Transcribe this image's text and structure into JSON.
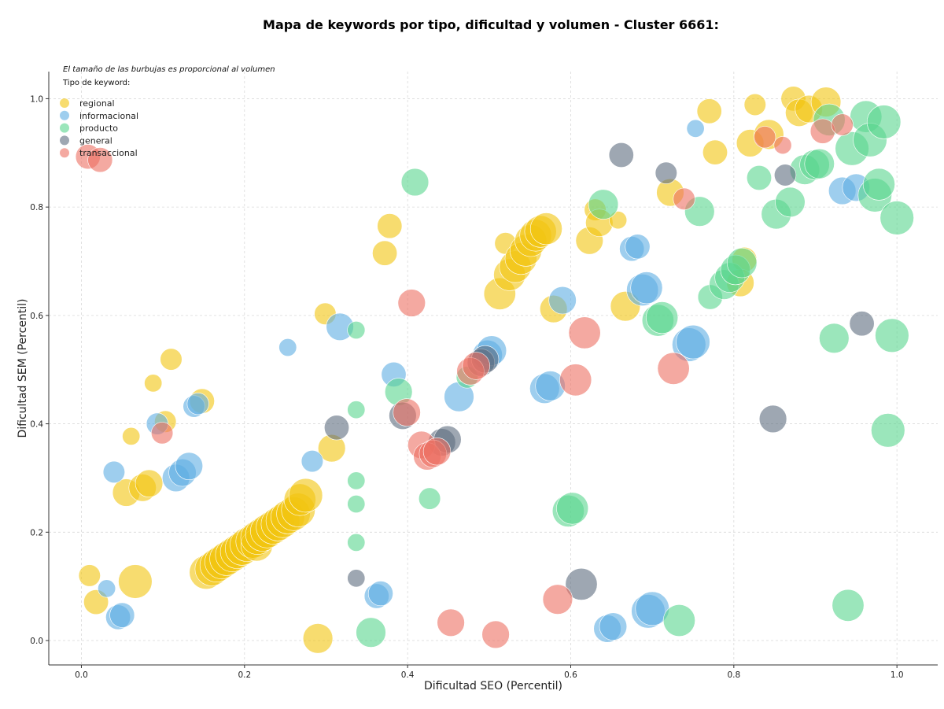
{
  "chart_data": {
    "type": "scatter",
    "title": "Mapa de keywords por tipo, dificultad y volumen - Cluster 6661:",
    "xlabel": "Dificultad SEO (Percentil)",
    "ylabel": "Dificultad SEM (Percentil)",
    "annotation": "El tamaño de las burbujas es proporcional al volumen",
    "legend_title": "Tipo de keyword:",
    "legend_position": "top-left",
    "grid": true,
    "xlim": [
      -0.04,
      1.05
    ],
    "ylim": [
      -0.045,
      1.05
    ],
    "x_ticks": [
      0.0,
      0.2,
      0.4,
      0.6,
      0.8,
      1.0
    ],
    "y_ticks": [
      0.0,
      0.2,
      0.4,
      0.6,
      0.8,
      1.0
    ],
    "x_tick_labels": [
      "0.0",
      "0.2",
      "0.4",
      "0.6",
      "0.8",
      "1.0"
    ],
    "y_tick_labels": [
      "0.0",
      "0.2",
      "0.4",
      "0.6",
      "0.8",
      "1.0"
    ],
    "series": [
      {
        "name": "regional",
        "color": "#f1c40f",
        "points": [
          {
            "x": 0.01,
            "y": 0.12,
            "v": 2
          },
          {
            "x": 0.018,
            "y": 0.071,
            "v": 3
          },
          {
            "x": 0.066,
            "y": 0.109,
            "v": 7
          },
          {
            "x": 0.055,
            "y": 0.273,
            "v": 4
          },
          {
            "x": 0.075,
            "y": 0.282,
            "v": 4
          },
          {
            "x": 0.083,
            "y": 0.29,
            "v": 4
          },
          {
            "x": 0.061,
            "y": 0.377,
            "v": 1
          },
          {
            "x": 0.088,
            "y": 0.475,
            "v": 1
          },
          {
            "x": 0.103,
            "y": 0.404,
            "v": 2
          },
          {
            "x": 0.11,
            "y": 0.519,
            "v": 2
          },
          {
            "x": 0.148,
            "y": 0.442,
            "v": 3
          },
          {
            "x": 0.153,
            "y": 0.126,
            "v": 7
          },
          {
            "x": 0.16,
            "y": 0.132,
            "v": 7
          },
          {
            "x": 0.166,
            "y": 0.139,
            "v": 7
          },
          {
            "x": 0.172,
            "y": 0.145,
            "v": 7
          },
          {
            "x": 0.178,
            "y": 0.151,
            "v": 7
          },
          {
            "x": 0.185,
            "y": 0.158,
            "v": 7
          },
          {
            "x": 0.191,
            "y": 0.164,
            "v": 7
          },
          {
            "x": 0.197,
            "y": 0.17,
            "v": 7
          },
          {
            "x": 0.203,
            "y": 0.177,
            "v": 7
          },
          {
            "x": 0.21,
            "y": 0.183,
            "v": 7
          },
          {
            "x": 0.215,
            "y": 0.176,
            "v": 6
          },
          {
            "x": 0.216,
            "y": 0.19,
            "v": 7
          },
          {
            "x": 0.222,
            "y": 0.196,
            "v": 7
          },
          {
            "x": 0.228,
            "y": 0.202,
            "v": 7
          },
          {
            "x": 0.235,
            "y": 0.209,
            "v": 7
          },
          {
            "x": 0.241,
            "y": 0.215,
            "v": 7
          },
          {
            "x": 0.247,
            "y": 0.221,
            "v": 7
          },
          {
            "x": 0.253,
            "y": 0.228,
            "v": 7
          },
          {
            "x": 0.26,
            "y": 0.234,
            "v": 7
          },
          {
            "x": 0.266,
            "y": 0.241,
            "v": 7
          },
          {
            "x": 0.268,
            "y": 0.26,
            "v": 6
          },
          {
            "x": 0.275,
            "y": 0.268,
            "v": 7
          },
          {
            "x": 0.29,
            "y": 0.004,
            "v": 5
          },
          {
            "x": 0.299,
            "y": 0.603,
            "v": 2
          },
          {
            "x": 0.307,
            "y": 0.355,
            "v": 4
          },
          {
            "x": 0.372,
            "y": 0.715,
            "v": 3
          },
          {
            "x": 0.378,
            "y": 0.765,
            "v": 3
          },
          {
            "x": 0.52,
            "y": 0.733,
            "v": 2
          },
          {
            "x": 0.513,
            "y": 0.64,
            "v": 6
          },
          {
            "x": 0.525,
            "y": 0.675,
            "v": 6
          },
          {
            "x": 0.532,
            "y": 0.69,
            "v": 6
          },
          {
            "x": 0.539,
            "y": 0.705,
            "v": 6
          },
          {
            "x": 0.545,
            "y": 0.72,
            "v": 6
          },
          {
            "x": 0.551,
            "y": 0.738,
            "v": 6
          },
          {
            "x": 0.557,
            "y": 0.748,
            "v": 6
          },
          {
            "x": 0.563,
            "y": 0.755,
            "v": 6
          },
          {
            "x": 0.57,
            "y": 0.76,
            "v": 6
          },
          {
            "x": 0.579,
            "y": 0.612,
            "v": 4
          },
          {
            "x": 0.623,
            "y": 0.738,
            "v": 4
          },
          {
            "x": 0.63,
            "y": 0.795,
            "v": 2
          },
          {
            "x": 0.635,
            "y": 0.771,
            "v": 4
          },
          {
            "x": 0.658,
            "y": 0.776,
            "v": 1
          },
          {
            "x": 0.667,
            "y": 0.617,
            "v": 5
          },
          {
            "x": 0.722,
            "y": 0.827,
            "v": 4
          },
          {
            "x": 0.77,
            "y": 0.977,
            "v": 3
          },
          {
            "x": 0.777,
            "y": 0.901,
            "v": 3
          },
          {
            "x": 0.813,
            "y": 0.703,
            "v": 3
          },
          {
            "x": 0.808,
            "y": 0.66,
            "v": 4
          },
          {
            "x": 0.82,
            "y": 0.918,
            "v": 4
          },
          {
            "x": 0.826,
            "y": 0.989,
            "v": 2
          },
          {
            "x": 0.843,
            "y": 0.934,
            "v": 5
          },
          {
            "x": 0.873,
            "y": 1.0,
            "v": 3
          },
          {
            "x": 0.88,
            "y": 0.974,
            "v": 4
          },
          {
            "x": 0.892,
            "y": 0.981,
            "v": 4
          },
          {
            "x": 0.913,
            "y": 0.994,
            "v": 5
          }
        ]
      },
      {
        "name": "informacional",
        "color": "#5dade2",
        "points": [
          {
            "x": 0.031,
            "y": 0.096,
            "v": 1
          },
          {
            "x": 0.04,
            "y": 0.311,
            "v": 2
          },
          {
            "x": 0.045,
            "y": 0.043,
            "v": 3
          },
          {
            "x": 0.05,
            "y": 0.047,
            "v": 3
          },
          {
            "x": 0.093,
            "y": 0.4,
            "v": 2
          },
          {
            "x": 0.116,
            "y": 0.3,
            "v": 4
          },
          {
            "x": 0.124,
            "y": 0.31,
            "v": 4
          },
          {
            "x": 0.132,
            "y": 0.322,
            "v": 4
          },
          {
            "x": 0.138,
            "y": 0.432,
            "v": 2
          },
          {
            "x": 0.143,
            "y": 0.437,
            "v": 2
          },
          {
            "x": 0.253,
            "y": 0.541,
            "v": 1
          },
          {
            "x": 0.283,
            "y": 0.331,
            "v": 2
          },
          {
            "x": 0.317,
            "y": 0.579,
            "v": 4
          },
          {
            "x": 0.362,
            "y": 0.082,
            "v": 3
          },
          {
            "x": 0.367,
            "y": 0.087,
            "v": 3
          },
          {
            "x": 0.383,
            "y": 0.491,
            "v": 3
          },
          {
            "x": 0.463,
            "y": 0.45,
            "v": 5
          },
          {
            "x": 0.498,
            "y": 0.527,
            "v": 5
          },
          {
            "x": 0.503,
            "y": 0.535,
            "v": 5
          },
          {
            "x": 0.568,
            "y": 0.465,
            "v": 5
          },
          {
            "x": 0.575,
            "y": 0.47,
            "v": 5
          },
          {
            "x": 0.59,
            "y": 0.628,
            "v": 4
          },
          {
            "x": 0.645,
            "y": 0.022,
            "v": 4
          },
          {
            "x": 0.652,
            "y": 0.026,
            "v": 4
          },
          {
            "x": 0.675,
            "y": 0.723,
            "v": 3
          },
          {
            "x": 0.682,
            "y": 0.727,
            "v": 3
          },
          {
            "x": 0.688,
            "y": 0.647,
            "v": 6
          },
          {
            "x": 0.693,
            "y": 0.651,
            "v": 6
          },
          {
            "x": 0.695,
            "y": 0.054,
            "v": 7
          },
          {
            "x": 0.7,
            "y": 0.059,
            "v": 7
          },
          {
            "x": 0.745,
            "y": 0.546,
            "v": 7
          },
          {
            "x": 0.75,
            "y": 0.551,
            "v": 7
          },
          {
            "x": 0.753,
            "y": 0.945,
            "v": 1
          },
          {
            "x": 0.933,
            "y": 0.83,
            "v": 4
          },
          {
            "x": 0.95,
            "y": 0.836,
            "v": 4
          }
        ]
      },
      {
        "name": "producto",
        "color": "#58d68d",
        "points": [
          {
            "x": 0.337,
            "y": 0.573,
            "v": 1
          },
          {
            "x": 0.337,
            "y": 0.426,
            "v": 1
          },
          {
            "x": 0.337,
            "y": 0.295,
            "v": 1
          },
          {
            "x": 0.337,
            "y": 0.252,
            "v": 1
          },
          {
            "x": 0.337,
            "y": 0.181,
            "v": 1
          },
          {
            "x": 0.355,
            "y": 0.015,
            "v": 5
          },
          {
            "x": 0.389,
            "y": 0.459,
            "v": 4
          },
          {
            "x": 0.409,
            "y": 0.846,
            "v": 4
          },
          {
            "x": 0.427,
            "y": 0.262,
            "v": 2
          },
          {
            "x": 0.473,
            "y": 0.486,
            "v": 2
          },
          {
            "x": 0.597,
            "y": 0.239,
            "v": 6
          },
          {
            "x": 0.602,
            "y": 0.244,
            "v": 6
          },
          {
            "x": 0.64,
            "y": 0.805,
            "v": 5
          },
          {
            "x": 0.707,
            "y": 0.591,
            "v": 6
          },
          {
            "x": 0.712,
            "y": 0.596,
            "v": 6
          },
          {
            "x": 0.733,
            "y": 0.037,
            "v": 6
          },
          {
            "x": 0.758,
            "y": 0.792,
            "v": 5
          },
          {
            "x": 0.771,
            "y": 0.634,
            "v": 3
          },
          {
            "x": 0.788,
            "y": 0.657,
            "v": 5
          },
          {
            "x": 0.795,
            "y": 0.67,
            "v": 5
          },
          {
            "x": 0.802,
            "y": 0.684,
            "v": 5
          },
          {
            "x": 0.81,
            "y": 0.697,
            "v": 5
          },
          {
            "x": 0.831,
            "y": 0.854,
            "v": 3
          },
          {
            "x": 0.852,
            "y": 0.787,
            "v": 5
          },
          {
            "x": 0.869,
            "y": 0.809,
            "v": 5
          },
          {
            "x": 0.887,
            "y": 0.869,
            "v": 5
          },
          {
            "x": 0.899,
            "y": 0.878,
            "v": 5
          },
          {
            "x": 0.905,
            "y": 0.88,
            "v": 5
          },
          {
            "x": 0.917,
            "y": 0.961,
            "v": 6
          },
          {
            "x": 0.923,
            "y": 0.558,
            "v": 5
          },
          {
            "x": 0.94,
            "y": 0.065,
            "v": 6
          },
          {
            "x": 0.945,
            "y": 0.908,
            "v": 7
          },
          {
            "x": 0.962,
            "y": 0.967,
            "v": 6
          },
          {
            "x": 0.967,
            "y": 0.924,
            "v": 7
          },
          {
            "x": 0.973,
            "y": 0.822,
            "v": 7
          },
          {
            "x": 0.978,
            "y": 0.842,
            "v": 6
          },
          {
            "x": 0.984,
            "y": 0.957,
            "v": 7
          },
          {
            "x": 0.989,
            "y": 0.388,
            "v": 7
          },
          {
            "x": 0.994,
            "y": 0.563,
            "v": 7
          },
          {
            "x": 1.0,
            "y": 0.78,
            "v": 7
          }
        ]
      },
      {
        "name": "general",
        "color": "#5d6d7e",
        "points": [
          {
            "x": 0.313,
            "y": 0.393,
            "v": 3
          },
          {
            "x": 0.337,
            "y": 0.115,
            "v": 1
          },
          {
            "x": 0.394,
            "y": 0.415,
            "v": 4
          },
          {
            "x": 0.442,
            "y": 0.366,
            "v": 4
          },
          {
            "x": 0.449,
            "y": 0.371,
            "v": 4
          },
          {
            "x": 0.49,
            "y": 0.513,
            "v": 4
          },
          {
            "x": 0.495,
            "y": 0.519,
            "v": 4
          },
          {
            "x": 0.613,
            "y": 0.104,
            "v": 6
          },
          {
            "x": 0.662,
            "y": 0.896,
            "v": 3
          },
          {
            "x": 0.717,
            "y": 0.863,
            "v": 2
          },
          {
            "x": 0.848,
            "y": 0.409,
            "v": 4
          },
          {
            "x": 0.863,
            "y": 0.859,
            "v": 2
          },
          {
            "x": 0.957,
            "y": 0.585,
            "v": 3
          }
        ]
      },
      {
        "name": "transaccional",
        "color": "#ec7063",
        "points": [
          {
            "x": 0.008,
            "y": 0.893,
            "v": 3
          },
          {
            "x": 0.023,
            "y": 0.887,
            "v": 3
          },
          {
            "x": 0.099,
            "y": 0.383,
            "v": 2
          },
          {
            "x": 0.399,
            "y": 0.421,
            "v": 4
          },
          {
            "x": 0.405,
            "y": 0.623,
            "v": 4
          },
          {
            "x": 0.417,
            "y": 0.361,
            "v": 4
          },
          {
            "x": 0.424,
            "y": 0.34,
            "v": 4
          },
          {
            "x": 0.431,
            "y": 0.345,
            "v": 4
          },
          {
            "x": 0.436,
            "y": 0.349,
            "v": 4
          },
          {
            "x": 0.453,
            "y": 0.033,
            "v": 4
          },
          {
            "x": 0.477,
            "y": 0.497,
            "v": 4
          },
          {
            "x": 0.484,
            "y": 0.507,
            "v": 4
          },
          {
            "x": 0.508,
            "y": 0.011,
            "v": 4
          },
          {
            "x": 0.584,
            "y": 0.076,
            "v": 5
          },
          {
            "x": 0.606,
            "y": 0.481,
            "v": 6
          },
          {
            "x": 0.617,
            "y": 0.568,
            "v": 6
          },
          {
            "x": 0.726,
            "y": 0.502,
            "v": 6
          },
          {
            "x": 0.739,
            "y": 0.815,
            "v": 2
          },
          {
            "x": 0.838,
            "y": 0.929,
            "v": 2
          },
          {
            "x": 0.86,
            "y": 0.914,
            "v": 1
          },
          {
            "x": 0.909,
            "y": 0.94,
            "v": 3
          },
          {
            "x": 0.933,
            "y": 0.952,
            "v": 2
          }
        ]
      }
    ]
  }
}
